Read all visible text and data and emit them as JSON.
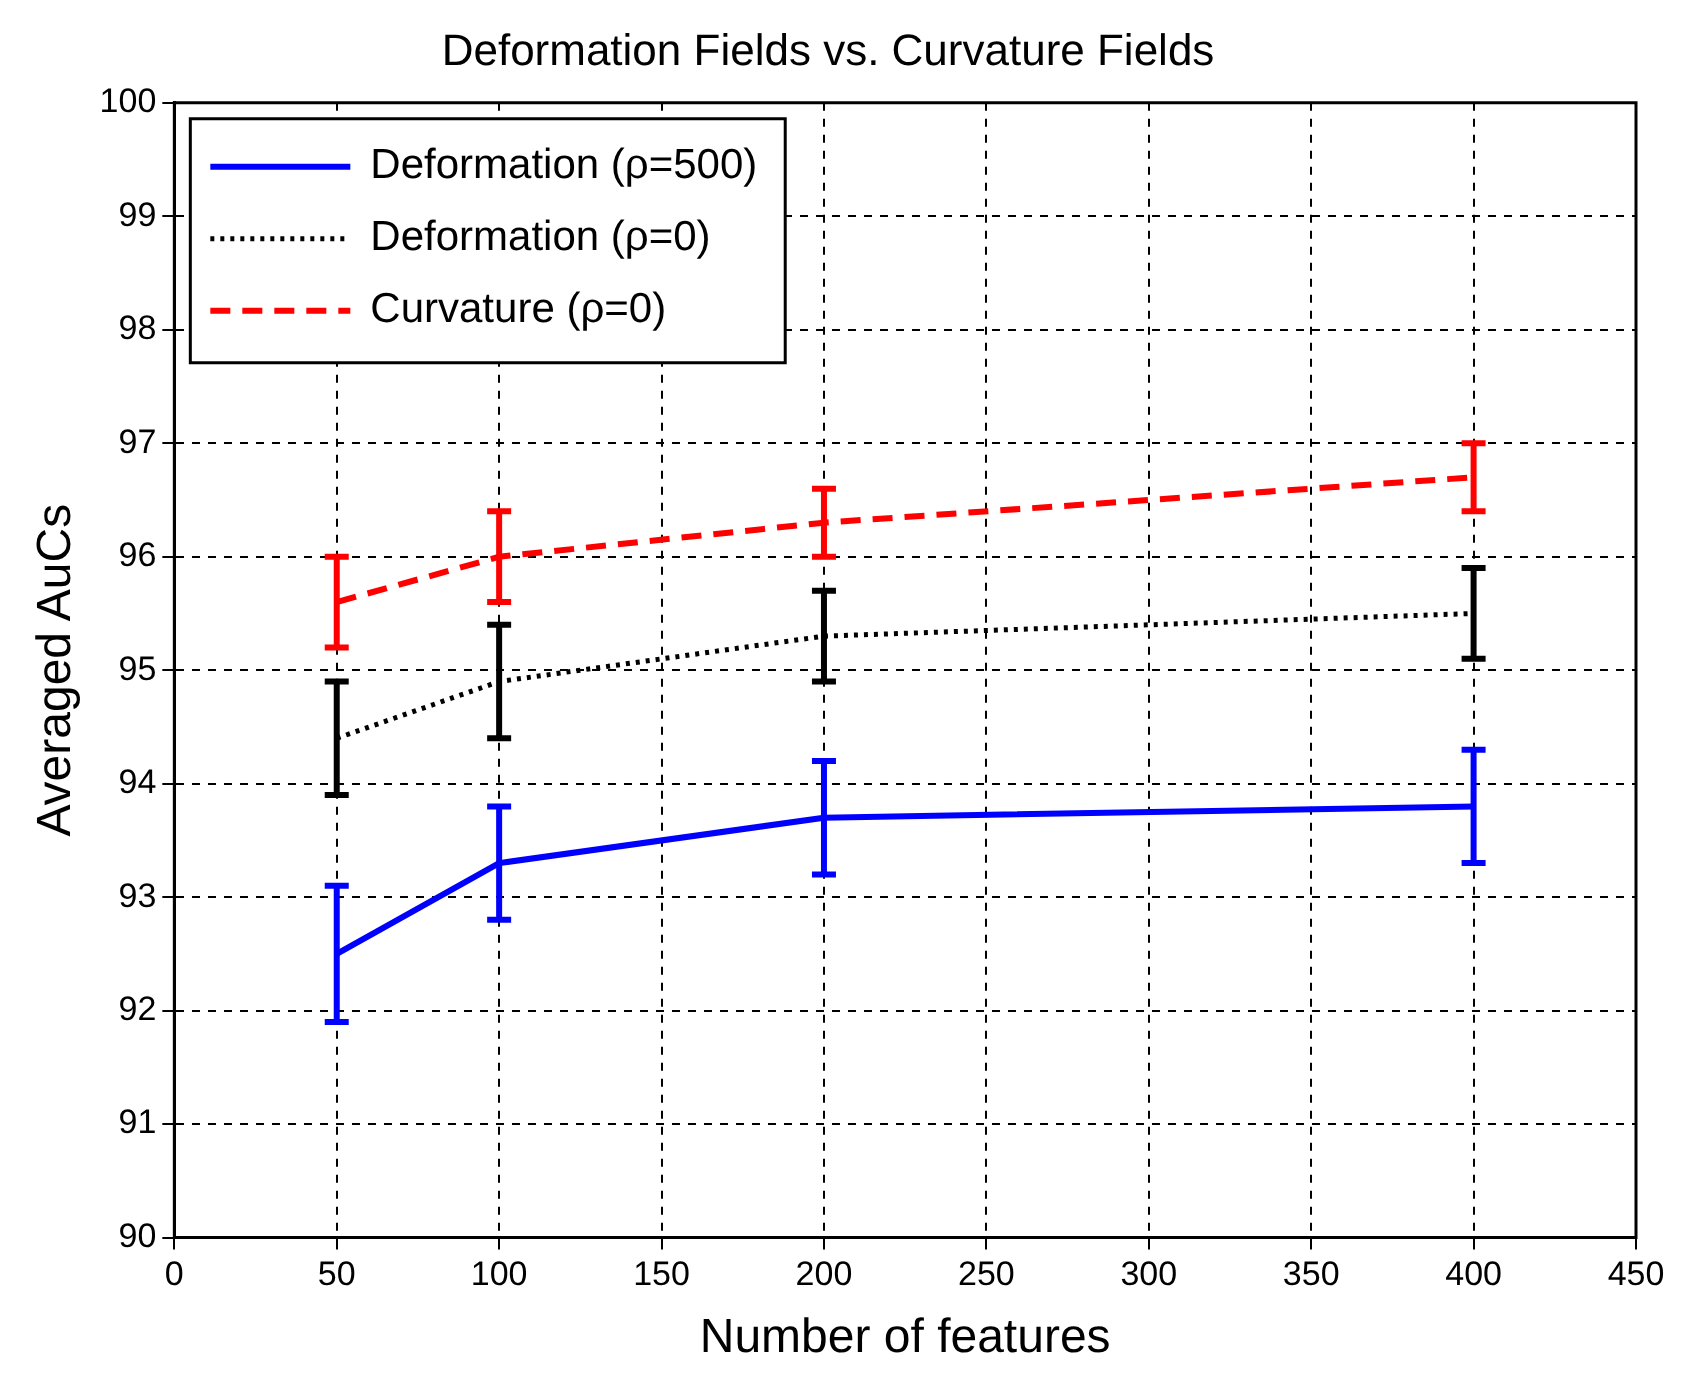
{
  "chart_data": {
    "type": "line",
    "title": "Deformation Fields vs. Curvature Fields",
    "xlabel": "Number of features",
    "ylabel": "Averaged AuCs",
    "x": [
      50,
      100,
      200,
      400
    ],
    "series": [
      {
        "name": "Deformation (ρ=500)",
        "color": "#0000ff",
        "line_style": "solid",
        "values": [
          92.5,
          93.3,
          93.7,
          93.8
        ],
        "errors": [
          0.6,
          0.5,
          0.5,
          0.5
        ]
      },
      {
        "name": "Deformation (ρ=0)",
        "color": "#000000",
        "line_style": "dotted",
        "values": [
          94.4,
          94.9,
          95.3,
          95.5
        ],
        "errors": [
          0.5,
          0.5,
          0.4,
          0.4
        ]
      },
      {
        "name": "Curvature (ρ=0)",
        "color": "#ff0000",
        "line_style": "dashed",
        "values": [
          95.6,
          96.0,
          96.3,
          96.7
        ],
        "errors": [
          0.4,
          0.4,
          0.3,
          0.3
        ]
      }
    ],
    "xlim": [
      0,
      450
    ],
    "xticks": [
      0,
      50,
      100,
      150,
      200,
      250,
      300,
      350,
      400,
      450
    ],
    "ylim": [
      90,
      100
    ],
    "yticks": [
      90,
      91,
      92,
      93,
      94,
      95,
      96,
      97,
      98,
      99,
      100
    ],
    "grid": true,
    "legend": "top left",
    "marker": "none"
  }
}
